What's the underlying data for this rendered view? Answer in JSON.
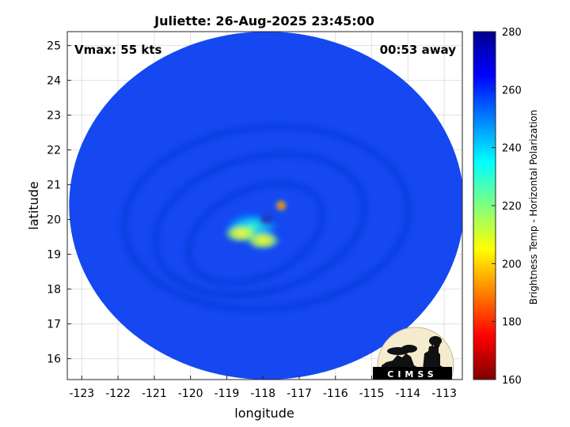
{
  "chart_data": {
    "type": "heatmap",
    "title": "Juliette: 26-Aug-2025 23:45:00",
    "xlabel": "longitude",
    "ylabel": "latitude",
    "xlim": [
      -123.4,
      -112.5
    ],
    "ylim": [
      15.4,
      25.4
    ],
    "x_ticks": [
      "-123",
      "-122",
      "-121",
      "-120",
      "-119",
      "-118",
      "-117",
      "-116",
      "-115",
      "-114",
      "-113"
    ],
    "y_ticks": [
      "25",
      "24",
      "23",
      "22",
      "21",
      "20",
      "19",
      "18",
      "17",
      "16"
    ],
    "grid": true,
    "annotations": {
      "vmax": "Vmax: 55 kts",
      "away": "00:53 away"
    },
    "center": {
      "lon": -117.9,
      "lat": 20.0
    },
    "colorbar": {
      "label": "Brightness Temp - Horizontal Polarization",
      "range": [
        160,
        280
      ],
      "ticks": [
        "280",
        "260",
        "240",
        "220",
        "200",
        "180",
        "160"
      ],
      "colormap": [
        "#7f0000",
        "#ff0000",
        "#ff8000",
        "#ffff00",
        "#80ff80",
        "#00ffff",
        "#0080ff",
        "#0000ff",
        "#00008f"
      ]
    },
    "coverage_disk": {
      "center_lon": -117.9,
      "center_lat": 20.4,
      "radius_deg_lon": 5.45,
      "radius_deg_lat": 5.0
    },
    "background_brightness_temp": 262,
    "features": [
      {
        "name": "rain band",
        "lon": -118.3,
        "lat": 19.8,
        "brightness_temp": 230
      },
      {
        "name": "eyewall convection",
        "lon": -118.0,
        "lat": 19.4,
        "brightness_temp": 205
      },
      {
        "name": "deep convection",
        "lon": -118.6,
        "lat": 19.6,
        "brightness_temp": 210
      },
      {
        "name": "hot spot",
        "lon": -117.5,
        "lat": 20.4,
        "brightness_temp": 175
      },
      {
        "name": "eye",
        "lon": -117.9,
        "lat": 20.0,
        "brightness_temp": 258
      }
    ]
  },
  "logo": {
    "text": "CIMSS"
  }
}
